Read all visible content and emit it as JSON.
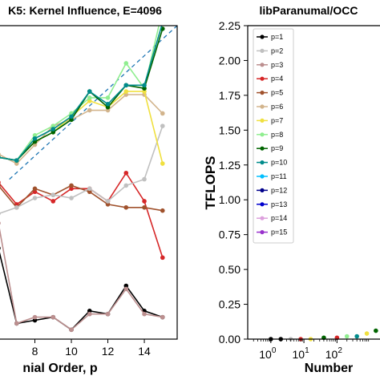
{
  "chart_data": [
    {
      "type": "line",
      "title": "K5: Kernel Influence, E=4096",
      "xlabel": "nial Order, p",
      "ylabel": "",
      "xlim": [
        6.0,
        15.8
      ],
      "ylim": [
        0.0,
        1.0
      ],
      "xticks": [
        8,
        10,
        12,
        14
      ],
      "xtick_labels": [
        "8",
        "10",
        "12",
        "14"
      ],
      "grid": false,
      "series": [
        {
          "color": "#1f77b4",
          "dashed": true,
          "x": [
            6.6,
            15.8
          ],
          "y": [
            0.51,
            1.0
          ]
        },
        {
          "color": "#000000",
          "x": [
            6,
            7,
            8,
            9,
            10,
            11,
            12,
            13,
            14,
            15
          ],
          "y": [
            0.29,
            0.05,
            0.06,
            0.07,
            0.03,
            0.09,
            0.08,
            0.17,
            0.09,
            0.07
          ]
        },
        {
          "color": "#bc8f8f",
          "x": [
            6,
            7,
            8,
            9,
            10,
            11,
            12,
            13,
            14,
            15
          ],
          "y": [
            0.37,
            0.05,
            0.07,
            0.07,
            0.03,
            0.08,
            0.08,
            0.16,
            0.08,
            0.07
          ]
        },
        {
          "color": "#d62728",
          "x": [
            6,
            7,
            8,
            9,
            10,
            11,
            12,
            13,
            14,
            15
          ],
          "y": [
            0.5,
            0.43,
            0.47,
            0.44,
            0.48,
            0.48,
            0.44,
            0.53,
            0.44,
            0.26
          ]
        },
        {
          "color": "#a0522d",
          "x": [
            6,
            7,
            8,
            9,
            10,
            11,
            12,
            13,
            14,
            15
          ],
          "y": [
            0.49,
            0.42,
            0.48,
            0.46,
            0.49,
            0.47,
            0.43,
            0.42,
            0.42,
            0.41
          ]
        },
        {
          "color": "#c0c0c0",
          "x": [
            6,
            7,
            8,
            9,
            10,
            11,
            12,
            13,
            14,
            15
          ],
          "y": [
            0.4,
            0.42,
            0.45,
            0.46,
            0.45,
            0.48,
            0.44,
            0.49,
            0.51,
            0.68
          ]
        },
        {
          "color": "#d2b48c",
          "x": [
            6,
            7,
            8,
            9,
            10,
            11,
            12,
            13,
            14,
            15
          ],
          "y": [
            0.59,
            0.56,
            0.62,
            0.68,
            0.7,
            0.73,
            0.73,
            0.78,
            0.78,
            0.72
          ]
        },
        {
          "color": "#f0e040",
          "x": [
            6,
            7,
            8,
            9,
            10,
            11,
            12,
            13,
            14,
            15
          ],
          "y": [
            0.58,
            0.57,
            0.63,
            0.66,
            0.71,
            0.76,
            0.74,
            0.79,
            0.79,
            0.56
          ]
        },
        {
          "color": "#90ee90",
          "x": [
            6,
            7,
            8,
            9,
            10,
            11,
            12,
            13,
            14,
            15
          ],
          "y": [
            0.58,
            0.57,
            0.65,
            0.68,
            0.72,
            0.77,
            0.77,
            0.88,
            0.8,
            1.05
          ]
        },
        {
          "color": "#006400",
          "x": [
            6,
            7,
            8,
            9,
            10,
            11,
            12,
            13,
            14,
            15
          ],
          "y": [
            0.58,
            0.57,
            0.63,
            0.66,
            0.7,
            0.79,
            0.74,
            0.81,
            0.8,
            0.99
          ]
        },
        {
          "color": "#008b8b",
          "x": [
            6,
            7,
            8,
            9,
            10,
            11,
            12,
            13,
            14,
            15
          ],
          "y": [
            0.58,
            0.57,
            0.64,
            0.67,
            0.71,
            0.79,
            0.75,
            0.81,
            0.81,
            1.01
          ]
        }
      ]
    },
    {
      "type": "scatter",
      "title": "libParanumal/OCC",
      "xlabel": "Number",
      "ylabel": "TFLOPS",
      "ylim": [
        0.0,
        2.25
      ],
      "yticks": [
        0.0,
        0.25,
        0.5,
        0.75,
        1.0,
        1.25,
        1.5,
        1.75,
        2.0,
        2.25
      ],
      "ytick_labels": [
        "0.00",
        "0.25",
        "0.50",
        "0.75",
        "1.00",
        "1.25",
        "1.50",
        "1.75",
        "2.00",
        "2.25"
      ],
      "x_scale": "log",
      "xlim": [
        0.2,
        2000
      ],
      "xticks": [
        1,
        10,
        100
      ],
      "xtick_labels": [
        {
          "base": "10",
          "exp": "0"
        },
        {
          "base": "10",
          "exp": "1"
        },
        {
          "base": "10",
          "exp": "2"
        }
      ],
      "legend_position": "upper-left",
      "series": [
        {
          "name": "p=1",
          "color": "#000000",
          "marker": "o"
        },
        {
          "name": "p=2",
          "color": "#c0c0c0",
          "marker": "o"
        },
        {
          "name": "p=3",
          "color": "#bc8f8f",
          "marker": "o"
        },
        {
          "name": "p=4",
          "color": "#d62728",
          "marker": "o"
        },
        {
          "name": "p=5",
          "color": "#a0522d",
          "marker": "o"
        },
        {
          "name": "p=6",
          "color": "#d2b48c",
          "marker": "o"
        },
        {
          "name": "p=7",
          "color": "#f0e040",
          "marker": "o"
        },
        {
          "name": "p=8",
          "color": "#90ee90",
          "marker": "o"
        },
        {
          "name": "p=9",
          "color": "#006400",
          "marker": "o"
        },
        {
          "name": "p=10",
          "color": "#008b8b",
          "marker": "o"
        },
        {
          "name": "p=11",
          "color": "#00bfff",
          "marker": "o"
        },
        {
          "name": "p=12",
          "color": "#00008b",
          "marker": "o"
        },
        {
          "name": "p=13",
          "color": "#0000cd",
          "marker": "o"
        },
        {
          "name": "p=14",
          "color": "#dda0dd",
          "marker": "o"
        },
        {
          "name": "p=15",
          "color": "#9932cc",
          "marker": "o"
        }
      ],
      "points": [
        {
          "x": 1.0,
          "y": 0.0,
          "color": "#000000"
        },
        {
          "x": 2.0,
          "y": 0.0,
          "color": "#000000"
        },
        {
          "x": 4.0,
          "y": 0.0,
          "color": "#c0c0c0"
        },
        {
          "x": 8.0,
          "y": 0.0,
          "color": "#d62728"
        },
        {
          "x": 16.0,
          "y": 0.0,
          "color": "#f0e040"
        },
        {
          "x": 40.0,
          "y": 0.01,
          "color": "#006400"
        },
        {
          "x": 100.0,
          "y": 0.01,
          "color": "#d62728"
        },
        {
          "x": 200.0,
          "y": 0.02,
          "color": "#90ee90"
        },
        {
          "x": 400.0,
          "y": 0.02,
          "color": "#008b8b"
        },
        {
          "x": 800.0,
          "y": 0.04,
          "color": "#f0e040"
        },
        {
          "x": 1500.0,
          "y": 0.06,
          "color": "#006400"
        }
      ]
    }
  ]
}
